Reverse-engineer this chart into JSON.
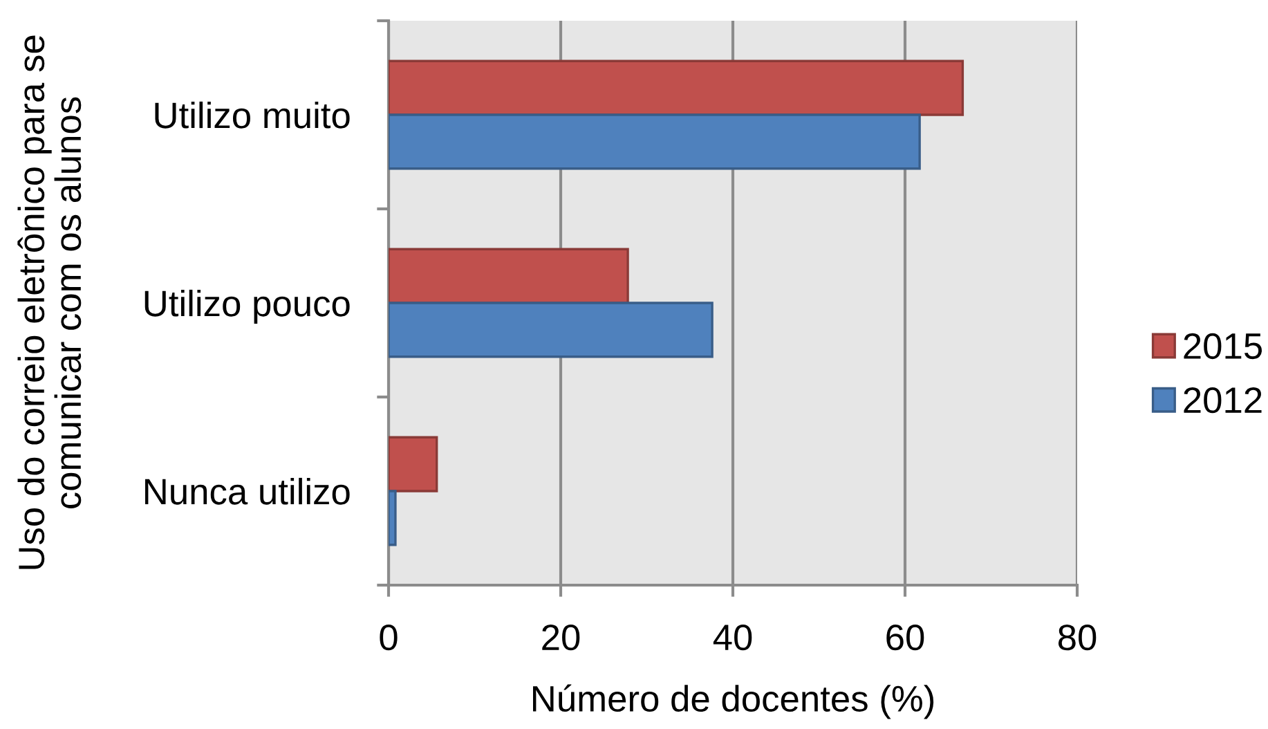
{
  "chart_data": {
    "type": "bar",
    "orientation": "horizontal",
    "categories": [
      "Utilizo muito",
      "Utilizo pouco",
      "Nunca utilizo"
    ],
    "series": [
      {
        "name": "2015",
        "color": "#c0504d",
        "values": [
          66.7,
          27.8,
          5.6
        ]
      },
      {
        "name": "2012",
        "color": "#4f81bd",
        "values": [
          61.7,
          37.6,
          0.8
        ]
      }
    ],
    "xlabel": "Número de docentes (%)",
    "ylabel": "Uso do correio eletrônico para se\ncomunicar com os alunos",
    "xlim": [
      0,
      80
    ],
    "xticks": [
      0,
      20,
      40,
      60,
      80
    ],
    "grid": "x",
    "legend": "right"
  }
}
